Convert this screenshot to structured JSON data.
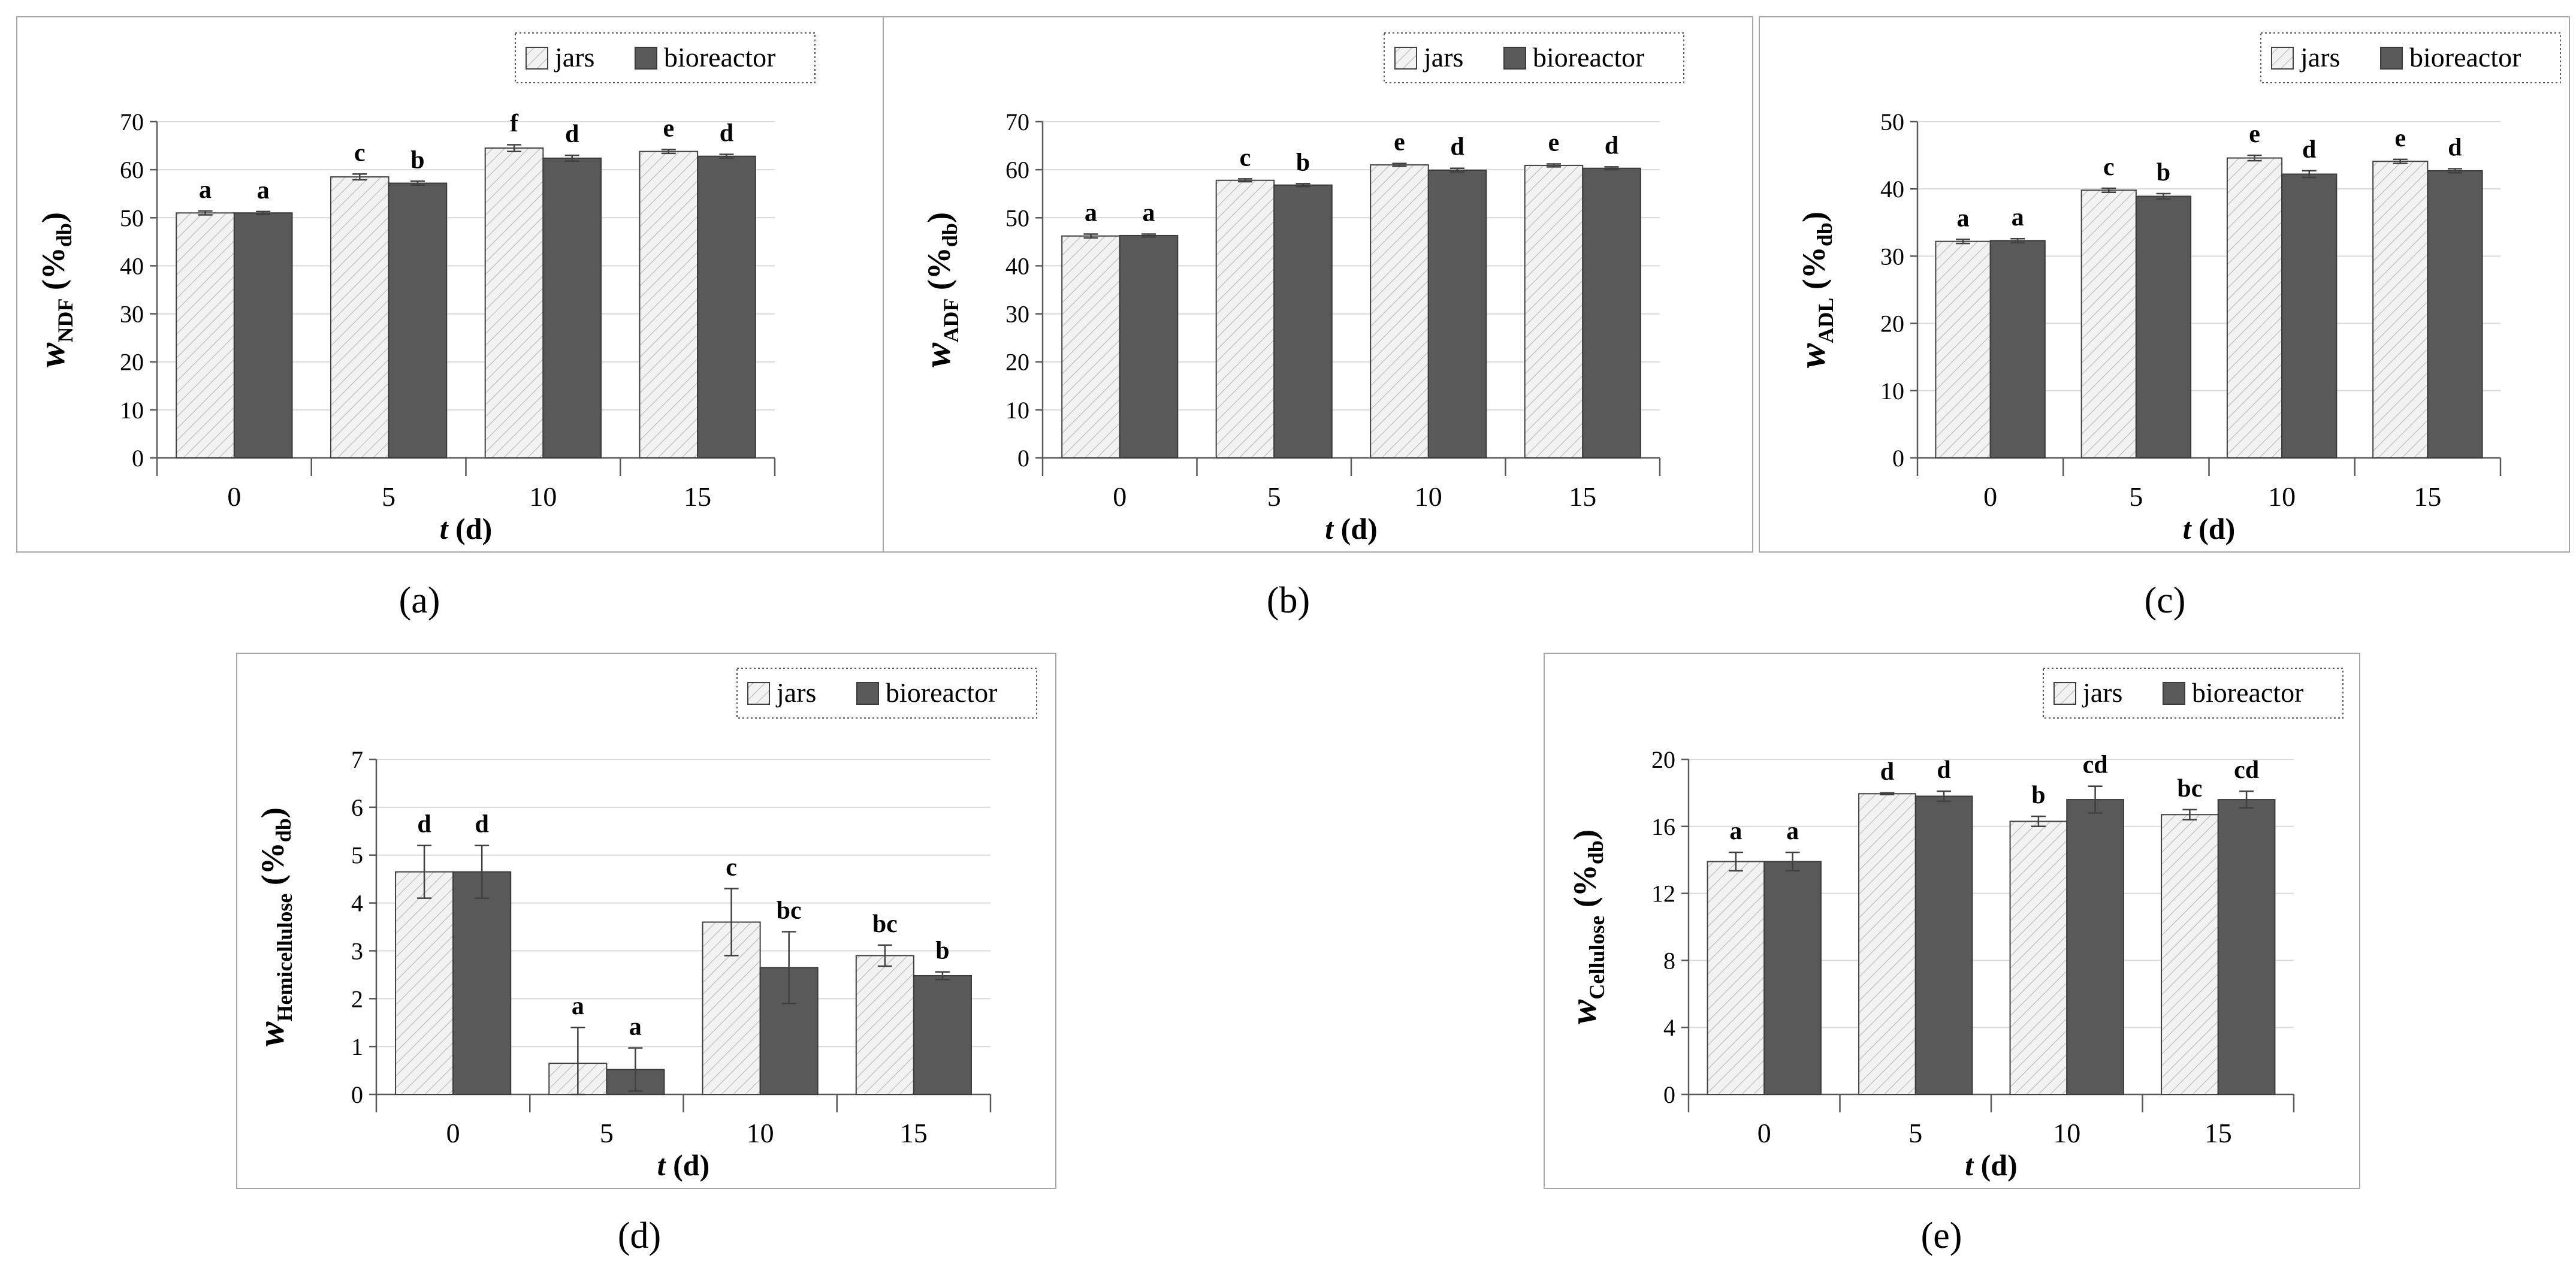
{
  "colors": {
    "jars_fill": "#f2f2f2",
    "jars_hatch": "#b8b8b8",
    "bioreactor_fill": "#595959",
    "bar_edge": "#404040",
    "grid": "#d9d9d9",
    "axis": "#595959",
    "frame": "#a6a6a6",
    "text": "#000000"
  },
  "legend": {
    "jars_label": "jars",
    "bioreactor_label": "bioreactor",
    "style": "dotted frame"
  },
  "chart_data": [
    {
      "id": "a",
      "panel_label": "(a)",
      "type": "bar",
      "ylabel": {
        "main": "w",
        "sub": "NDF",
        "unit_main": "(%",
        "unit_sub": "db",
        "unit_close": ")"
      },
      "xlabel": {
        "main": "t",
        "unit": "(d)"
      },
      "categories": [
        "0",
        "5",
        "10",
        "15"
      ],
      "ylim": [
        0,
        70
      ],
      "yticks": [
        0,
        10,
        20,
        30,
        40,
        50,
        60,
        70
      ],
      "legend_position": "top-right",
      "grid": true,
      "series": [
        {
          "name": "jars",
          "values": [
            51,
            58.5,
            64.5,
            63.8
          ],
          "errors": [
            0.4,
            0.6,
            0.7,
            0.4
          ],
          "letters": [
            "a",
            "c",
            "f",
            "e"
          ]
        },
        {
          "name": "bioreactor",
          "values": [
            51,
            57.2,
            62.4,
            62.8
          ],
          "errors": [
            0.3,
            0.4,
            0.6,
            0.4
          ],
          "letters": [
            "a",
            "b",
            "d",
            "d"
          ]
        }
      ]
    },
    {
      "id": "b",
      "panel_label": "(b)",
      "type": "bar",
      "ylabel": {
        "main": "w",
        "sub": "ADF",
        "unit_main": "(%",
        "unit_sub": "db",
        "unit_close": ")"
      },
      "xlabel": {
        "main": "t",
        "unit": "(d)"
      },
      "categories": [
        "0",
        "5",
        "10",
        "15"
      ],
      "ylim": [
        0,
        70
      ],
      "yticks": [
        0,
        10,
        20,
        30,
        40,
        50,
        60,
        70
      ],
      "legend_position": "top-right",
      "grid": true,
      "series": [
        {
          "name": "jars",
          "values": [
            46.2,
            57.8,
            61,
            60.9
          ],
          "errors": [
            0.4,
            0.3,
            0.3,
            0.3
          ],
          "letters": [
            "a",
            "c",
            "e",
            "e"
          ]
        },
        {
          "name": "bioreactor",
          "values": [
            46.3,
            56.8,
            59.9,
            60.3
          ],
          "errors": [
            0.3,
            0.3,
            0.4,
            0.3
          ],
          "letters": [
            "a",
            "b",
            "d",
            "d"
          ]
        }
      ]
    },
    {
      "id": "c",
      "panel_label": "(c)",
      "type": "bar",
      "ylabel": {
        "main": "w",
        "sub": "ADL",
        "unit_main": "(%",
        "unit_sub": "db",
        "unit_close": ")"
      },
      "xlabel": {
        "main": "t",
        "unit": "(d)"
      },
      "categories": [
        "0",
        "5",
        "10",
        "15"
      ],
      "ylim": [
        0,
        50
      ],
      "yticks": [
        0,
        10,
        20,
        30,
        40,
        50
      ],
      "legend_position": "top-right",
      "grid": true,
      "series": [
        {
          "name": "jars",
          "values": [
            32.2,
            39.8,
            44.6,
            44.1
          ],
          "errors": [
            0.3,
            0.3,
            0.4,
            0.3
          ],
          "letters": [
            "a",
            "c",
            "e",
            "e"
          ]
        },
        {
          "name": "bioreactor",
          "values": [
            32.3,
            38.9,
            42.2,
            42.7
          ],
          "errors": [
            0.3,
            0.4,
            0.5,
            0.3
          ],
          "letters": [
            "a",
            "b",
            "d",
            "d"
          ]
        }
      ]
    },
    {
      "id": "d",
      "panel_label": "(d)",
      "type": "bar",
      "ylabel": {
        "main": "w",
        "sub": "Hemicellulose",
        "unit_main": "(%",
        "unit_sub": "db",
        "unit_close": ")"
      },
      "xlabel": {
        "main": "t",
        "unit": "(d)"
      },
      "categories": [
        "0",
        "5",
        "10",
        "15"
      ],
      "ylim": [
        0,
        7
      ],
      "yticks": [
        0,
        1,
        2,
        3,
        4,
        5,
        6,
        7
      ],
      "legend_position": "top-right",
      "grid": true,
      "series": [
        {
          "name": "jars",
          "values": [
            4.65,
            0.65,
            3.6,
            2.9
          ],
          "errors": [
            0.55,
            0.75,
            0.7,
            0.22
          ],
          "letters": [
            "d",
            "a",
            "c",
            "bc"
          ]
        },
        {
          "name": "bioreactor",
          "values": [
            4.65,
            0.52,
            2.65,
            2.48
          ],
          "errors": [
            0.55,
            0.45,
            0.75,
            0.08
          ],
          "letters": [
            "d",
            "a",
            "bc",
            "b"
          ]
        }
      ]
    },
    {
      "id": "e",
      "panel_label": "(e)",
      "type": "bar",
      "ylabel": {
        "main": "w",
        "sub": "Cellulose",
        "unit_main": "(%",
        "unit_sub": "db",
        "unit_close": ")"
      },
      "xlabel": {
        "main": "t",
        "unit": "(d)"
      },
      "categories": [
        "0",
        "5",
        "10",
        "15"
      ],
      "ylim": [
        0,
        20
      ],
      "yticks": [
        0,
        4,
        8,
        12,
        16,
        20
      ],
      "legend_position": "top-right",
      "grid": true,
      "series": [
        {
          "name": "jars",
          "values": [
            13.9,
            17.95,
            16.3,
            16.7
          ],
          "errors": [
            0.55,
            0.05,
            0.3,
            0.3
          ],
          "letters": [
            "a",
            "d",
            "b",
            "bc"
          ]
        },
        {
          "name": "bioreactor",
          "values": [
            13.9,
            17.8,
            17.6,
            17.6
          ],
          "errors": [
            0.55,
            0.3,
            0.8,
            0.5
          ],
          "letters": [
            "a",
            "d",
            "cd",
            "cd"
          ]
        }
      ]
    }
  ]
}
